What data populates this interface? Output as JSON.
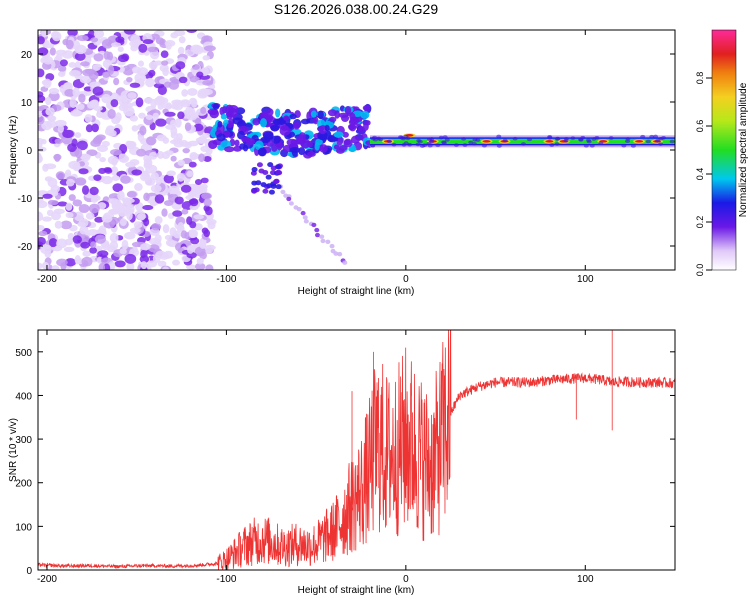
{
  "page_title": "S126.2026.038.00.24.G29",
  "chart_data": [
    {
      "type": "heatmap",
      "title": "S126.2026.038.00.24.G29",
      "xlabel": "Height of straight line (km)",
      "ylabel": "Frequency (Hz)",
      "xlim": [
        -205,
        150
      ],
      "ylim": [
        -25,
        25
      ],
      "xticks": [
        -200,
        -100,
        0,
        100
      ],
      "yticks": [
        -20,
        -10,
        0,
        10,
        20
      ],
      "colorbar": {
        "label": "Normalized spectral amplitude",
        "range": [
          0,
          1
        ],
        "ticks": [
          "0.0",
          "0.2",
          "0.4",
          "0.6",
          "0.8"
        ],
        "tick_values": [
          0,
          0.2,
          0.4,
          0.6,
          0.8
        ]
      },
      "features": [
        {
          "name": "noise-region",
          "x_range": [
            -205,
            -108
          ],
          "freq_range": [
            -25,
            25
          ],
          "amplitude": 0.05
        },
        {
          "name": "transition-region",
          "x_range": [
            -108,
            -20
          ],
          "freq_range": [
            -8,
            8
          ],
          "amplitude": 0.2
        },
        {
          "name": "descending-artifact",
          "x_range": [
            -75,
            -35
          ],
          "freq_range": [
            -23,
            -6
          ],
          "amplitude": 0.1
        },
        {
          "name": "stable-carrier",
          "x_range": [
            -20,
            150
          ],
          "center_freq": 1.8,
          "peak_amplitude": 0.95
        }
      ]
    },
    {
      "type": "line",
      "xlabel": "Height of straight line (km)",
      "ylabel": "SNR (10 * v/v)",
      "xlim": [
        -205,
        150
      ],
      "ylim": [
        0,
        550
      ],
      "xticks": [
        -200,
        -100,
        0,
        100
      ],
      "yticks": [
        0,
        100,
        200,
        300,
        400,
        500
      ],
      "series": [
        {
          "name": "SNR",
          "color": "#ee3333",
          "x": [
            -205,
            -190,
            -175,
            -160,
            -145,
            -130,
            -115,
            -105,
            -100,
            -95,
            -90,
            -85,
            -80,
            -75,
            -70,
            -65,
            -60,
            -55,
            -50,
            -45,
            -40,
            -35,
            -30,
            -25,
            -20,
            -18,
            -15,
            -10,
            -5,
            0,
            5,
            10,
            15,
            20,
            25,
            30,
            40,
            50,
            60,
            70,
            80,
            90,
            100,
            110,
            115,
            120,
            130,
            140,
            150
          ],
          "values": [
            12,
            9,
            10,
            8,
            10,
            9,
            11,
            15,
            25,
            40,
            55,
            65,
            70,
            65,
            55,
            55,
            60,
            55,
            60,
            75,
            90,
            120,
            150,
            180,
            230,
            270,
            290,
            260,
            270,
            300,
            280,
            250,
            240,
            300,
            360,
            400,
            420,
            430,
            430,
            430,
            435,
            438,
            440,
            435,
            430,
            432,
            430,
            430,
            428
          ],
          "spikes": [
            {
              "x": -18,
              "value": 500
            },
            {
              "x": -30,
              "value": 410
            },
            {
              "x": 115,
              "value": 550
            },
            {
              "x": 115,
              "value": 320
            },
            {
              "x": 95,
              "value": 345
            },
            {
              "x": 16,
              "value": 160
            }
          ]
        }
      ]
    }
  ],
  "colors": {
    "line": "#ee3333",
    "heat_low": "#c9a8f2",
    "heat_mid": "#6a18e6",
    "carrier": "#22dd22",
    "peak": "#e02020"
  }
}
